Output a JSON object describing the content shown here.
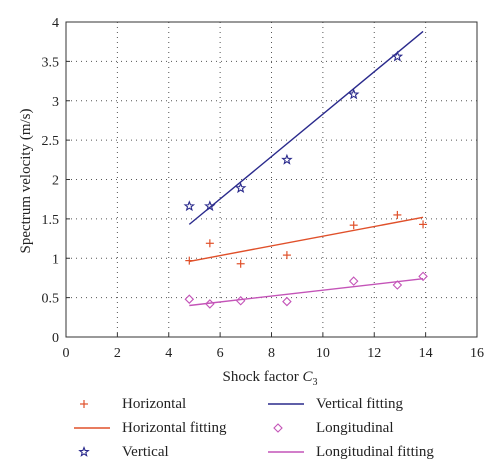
{
  "chart_data": {
    "type": "scatter",
    "xlabel_main": "Shock factor ",
    "xlabel_sym": "C",
    "xlabel_sub": "3",
    "ylabel": "Spectrum velocity (m/s)",
    "xlim": [
      0,
      16
    ],
    "ylim": [
      0,
      4
    ],
    "xticks": [
      0,
      2,
      4,
      6,
      8,
      10,
      12,
      14,
      16
    ],
    "yticks": [
      0,
      0.5,
      1,
      1.5,
      2,
      2.5,
      3,
      3.5,
      4
    ],
    "xtick_labels": [
      "0",
      "2",
      "4",
      "6",
      "8",
      "10",
      "12",
      "14",
      "16"
    ],
    "ytick_labels": [
      "0",
      "0.5",
      "1",
      "1.5",
      "2",
      "2.5",
      "3",
      "3.5",
      "4"
    ],
    "grid": true,
    "legend_position": "bottom",
    "series": [
      {
        "name": "Horizontal",
        "kind": "points",
        "marker": "plus",
        "color": "#e0502a",
        "x": [
          4.8,
          5.6,
          6.8,
          8.6,
          11.2,
          12.9,
          13.9
        ],
        "y": [
          0.97,
          1.19,
          0.93,
          1.04,
          1.42,
          1.55,
          1.43
        ]
      },
      {
        "name": "Horizontal fitting",
        "kind": "line",
        "color": "#e0502a",
        "x": [
          4.8,
          13.9
        ],
        "y": [
          0.96,
          1.52
        ]
      },
      {
        "name": "Vertical",
        "kind": "points",
        "marker": "star",
        "color": "#2a2a8c",
        "x": [
          4.8,
          5.6,
          6.8,
          8.6,
          11.2,
          12.9
        ],
        "y": [
          1.66,
          1.66,
          1.89,
          2.25,
          3.08,
          3.56
        ]
      },
      {
        "name": "Vertical fitting",
        "kind": "line",
        "color": "#2a2a8c",
        "x": [
          4.8,
          13.9
        ],
        "y": [
          1.43,
          3.88
        ]
      },
      {
        "name": "Longitudinal",
        "kind": "points",
        "marker": "diamond",
        "color": "#c454b8",
        "x": [
          4.8,
          5.6,
          6.8,
          8.6,
          11.2,
          12.9,
          13.9
        ],
        "y": [
          0.48,
          0.42,
          0.46,
          0.45,
          0.71,
          0.66,
          0.77
        ]
      },
      {
        "name": "Longitudinal fitting",
        "kind": "line",
        "color": "#c454b8",
        "x": [
          4.8,
          13.9
        ],
        "y": [
          0.4,
          0.74
        ]
      }
    ]
  }
}
